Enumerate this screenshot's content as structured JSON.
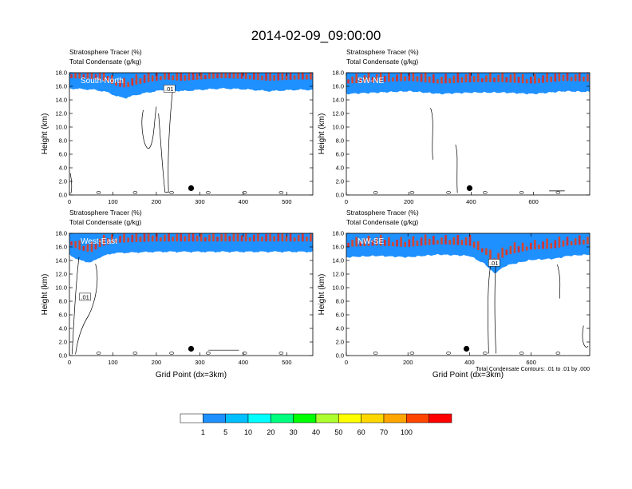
{
  "figure_title": "2014-02-09_09:00:00",
  "footnote": "Total Condensate Contours: .01 to .01 by .000",
  "chart_data": [
    {
      "type": "heatmap",
      "panel": "South-North",
      "title_line1": "Stratosphere Tracer   (%)",
      "title_line2": "Total Condensate   (g/kg)",
      "ylabel": "Height (km)",
      "xlabel": "",
      "xlim": [
        0,
        560
      ],
      "ylim": [
        0,
        18
      ],
      "xticks": [
        0,
        100,
        200,
        300,
        400,
        500
      ],
      "yticks": [
        0.0,
        2.0,
        4.0,
        6.0,
        8.0,
        10.0,
        12.0,
        14.0,
        16.0,
        18.0
      ],
      "contour_labels": [
        ".01"
      ],
      "marker": {
        "x": 280,
        "y": 1.0
      },
      "tracer_base_km": [
        [
          0,
          15.8
        ],
        [
          60,
          15.6
        ],
        [
          90,
          15.2
        ],
        [
          110,
          14.6
        ],
        [
          130,
          14.4
        ],
        [
          150,
          14.8
        ],
        [
          180,
          15.2
        ],
        [
          220,
          15.6
        ],
        [
          260,
          15.4
        ],
        [
          300,
          15.6
        ],
        [
          350,
          15.8
        ],
        [
          400,
          15.7
        ],
        [
          460,
          15.4
        ],
        [
          520,
          15.6
        ],
        [
          560,
          15.6
        ]
      ]
    },
    {
      "type": "heatmap",
      "panel": "SW-NE",
      "title_line1": "Stratosphere Tracer   (%)",
      "title_line2": "Total Condensate   (g/kg)",
      "ylabel": "Height (km)",
      "xlabel": "",
      "xlim": [
        0,
        780
      ],
      "ylim": [
        0,
        18
      ],
      "xticks": [
        0,
        200,
        400,
        600
      ],
      "yticks": [
        0.0,
        2.0,
        4.0,
        6.0,
        8.0,
        10.0,
        12.0,
        14.0,
        16.0,
        18.0
      ],
      "contour_labels": [],
      "marker": {
        "x": 395,
        "y": 1.0
      },
      "tracer_base_km": [
        [
          0,
          15.0
        ],
        [
          100,
          15.2
        ],
        [
          200,
          15.4
        ],
        [
          300,
          15.0
        ],
        [
          400,
          15.2
        ],
        [
          500,
          15.2
        ],
        [
          600,
          15.0
        ],
        [
          700,
          15.4
        ],
        [
          780,
          15.3
        ]
      ]
    },
    {
      "type": "heatmap",
      "panel": "West-East",
      "title_line1": "Stratosphere Tracer   (%)",
      "title_line2": "Total Condensate   (g/kg)",
      "ylabel": "Height (km)",
      "xlabel": "Grid Point (dx=3km)",
      "xlim": [
        0,
        560
      ],
      "ylim": [
        0,
        18
      ],
      "xticks": [
        0,
        100,
        200,
        300,
        400,
        500
      ],
      "yticks": [
        0.0,
        2.0,
        4.0,
        6.0,
        8.0,
        10.0,
        12.0,
        14.0,
        16.0,
        18.0
      ],
      "contour_labels": [
        ".01"
      ],
      "marker": {
        "x": 280,
        "y": 1.0
      },
      "tracer_base_km": [
        [
          0,
          15.0
        ],
        [
          20,
          14.2
        ],
        [
          50,
          13.8
        ],
        [
          70,
          14.6
        ],
        [
          100,
          15.2
        ],
        [
          200,
          15.4
        ],
        [
          300,
          15.4
        ],
        [
          400,
          15.4
        ],
        [
          500,
          15.4
        ],
        [
          560,
          15.4
        ]
      ]
    },
    {
      "type": "heatmap",
      "panel": "NW-SE",
      "title_line1": "Stratosphere Tracer   (%)",
      "title_line2": "Total Condensate   (g/kg)",
      "ylabel": "Height (km)",
      "xlabel": "Grid Point (dx=3km)",
      "xlim": [
        0,
        790
      ],
      "ylim": [
        0,
        18
      ],
      "xticks": [
        0,
        200,
        400,
        600
      ],
      "yticks": [
        0.0,
        2.0,
        4.0,
        6.0,
        8.0,
        10.0,
        12.0,
        14.0,
        16.0,
        18.0
      ],
      "contour_labels": [
        ".01"
      ],
      "marker": {
        "x": 390,
        "y": 1.0
      },
      "tracer_base_km": [
        [
          0,
          14.6
        ],
        [
          100,
          14.8
        ],
        [
          200,
          14.6
        ],
        [
          300,
          15.0
        ],
        [
          400,
          14.8
        ],
        [
          450,
          13.6
        ],
        [
          480,
          12.2
        ],
        [
          520,
          13.4
        ],
        [
          600,
          14.2
        ],
        [
          680,
          14.4
        ],
        [
          720,
          14.8
        ],
        [
          790,
          15.0
        ]
      ]
    }
  ],
  "colorbar": {
    "levels": [
      "1",
      "5",
      "10",
      "20",
      "30",
      "40",
      "50",
      "60",
      "70",
      "100"
    ],
    "colors": [
      "#ffffff",
      "#1e90ff",
      "#00bfff",
      "#00ffff",
      "#00ff7f",
      "#00ff00",
      "#adff2f",
      "#ffff00",
      "#ffd700",
      "#ffa500",
      "#ff4500",
      "#ff0000"
    ]
  }
}
